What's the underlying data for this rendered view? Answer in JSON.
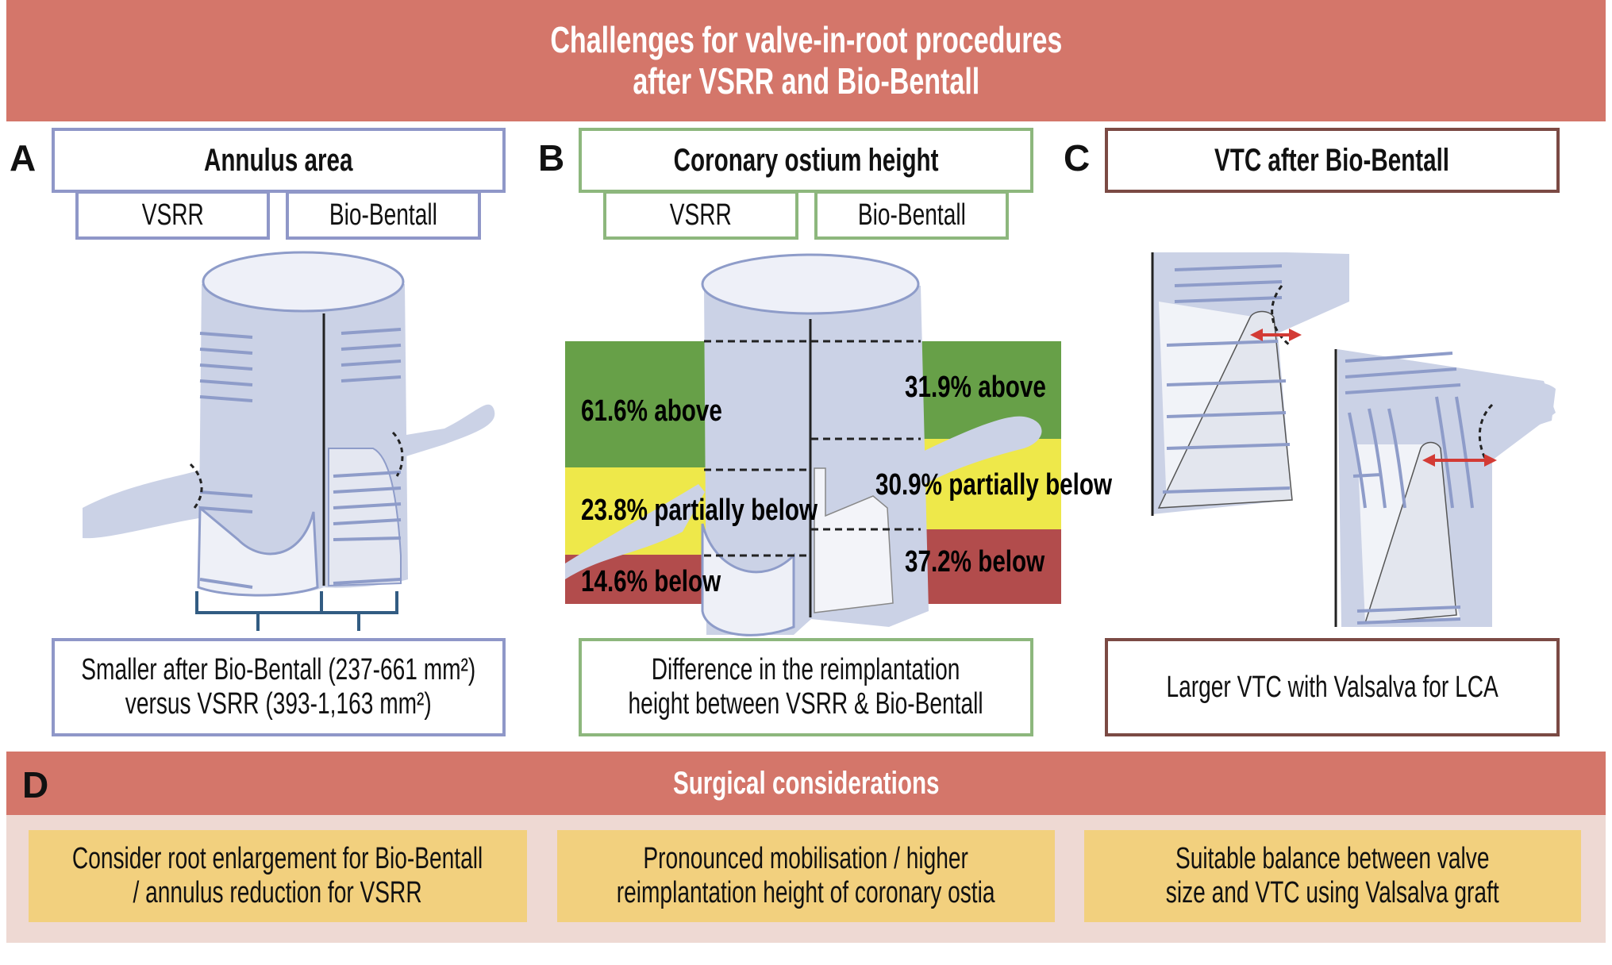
{
  "header": {
    "title_line1": "Challenges for valve-in-root procedures",
    "title_line2": "after VSRR and Bio-Bentall"
  },
  "panels": [
    {
      "letter": "A",
      "title": "Annulus area",
      "sub": [
        "VSRR",
        "Bio-Bentall"
      ],
      "desc_line1": "Smaller after Bio-Bentall (237-661 mm²)",
      "desc_line2": "versus VSRR (393-1,163 mm²)",
      "border_color": "#8F97C8"
    },
    {
      "letter": "B",
      "title": "Coronary ostium height",
      "sub": [
        "VSRR",
        "Bio-Bentall"
      ],
      "desc_line1": "Difference in the reimplantation",
      "desc_line2": "height between VSRR & Bio-Bentall",
      "border_color": "#8DB77D",
      "bands": {
        "vsrr": {
          "above": "61.6% above",
          "partial": "23.8% partially below",
          "below": "14.6% below"
        },
        "bio_bentall": {
          "above": "31.9% above",
          "partial": "30.9% partially below",
          "below": "37.2% below"
        },
        "colors": {
          "above": "#67A048",
          "partial": "#EEE84A",
          "below": "#B24C4C"
        }
      }
    },
    {
      "letter": "C",
      "title": "VTC after Bio-Bentall",
      "desc_line1": "Larger VTC with Valsalva for LCA",
      "border_color": "#7B4A44"
    }
  ],
  "surgical": {
    "letter": "D",
    "title": "Surgical considerations",
    "items": [
      {
        "line1": "Consider root enlargement for Bio-Bentall",
        "line2": "/ annulus reduction for VSRR"
      },
      {
        "line1": "Pronounced mobilisation / higher",
        "line2": "reimplantation height of coronary ostia"
      },
      {
        "line1": "Suitable balance between valve",
        "line2": "size and VTC using Valsalva graft"
      }
    ]
  },
  "colors": {
    "header": "#D4766A",
    "considerations_bg": "#EED9D3",
    "consideration_box": "#F2D07E",
    "graft": "#CBD2E6",
    "arrow": "#D33B35"
  }
}
